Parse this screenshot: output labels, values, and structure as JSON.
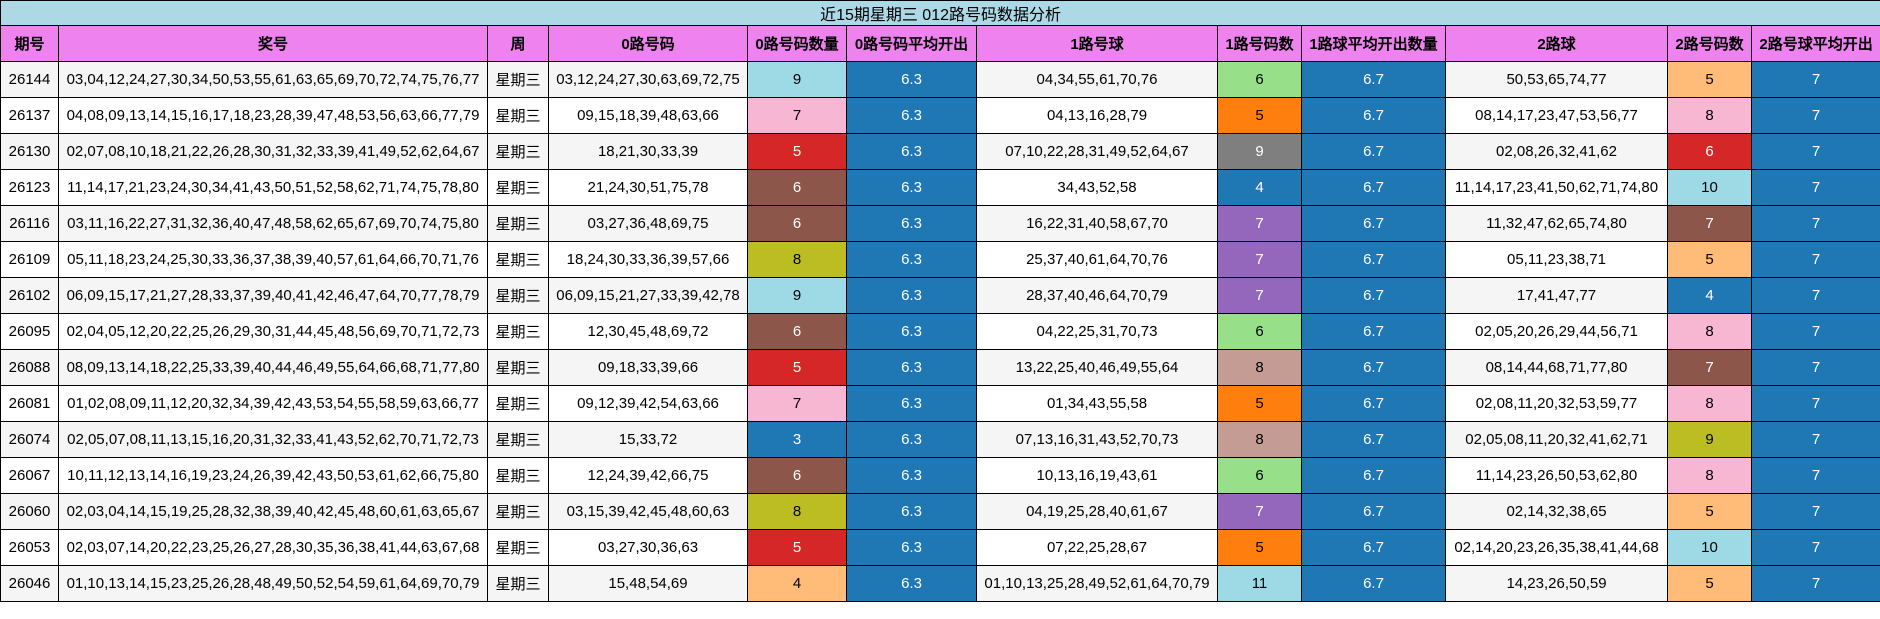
{
  "title": "近15期星期三 012路号码数据分析",
  "headers": [
    "期号",
    "奖号",
    "周",
    "0路号码",
    "0路号码数量",
    "0路号码平均开出",
    "1路号球",
    "1路号码数",
    "1路球平均开出数量",
    "2路球",
    "2路号码数",
    "2路号球平均开出"
  ],
  "rows": [
    [
      26144,
      "03,04,12,24,27,30,34,50,53,55,61,63,65,69,70,72,74,75,76,77",
      "星期三",
      "03,12,24,27,30,63,69,72,75",
      9,
      6.3,
      "04,34,55,61,70,76",
      6,
      6.7,
      "50,53,65,74,77",
      5,
      7
    ],
    [
      26137,
      "04,08,09,13,14,15,16,17,18,23,28,39,47,48,53,56,63,66,77,79",
      "星期三",
      "09,15,18,39,48,63,66",
      7,
      6.3,
      "04,13,16,28,79",
      5,
      6.7,
      "08,14,17,23,47,53,56,77",
      8,
      7
    ],
    [
      26130,
      "02,07,08,10,18,21,22,26,28,30,31,32,33,39,41,49,52,62,64,67",
      "星期三",
      "18,21,30,33,39",
      5,
      6.3,
      "07,10,22,28,31,49,52,64,67",
      9,
      6.7,
      "02,08,26,32,41,62",
      6,
      7
    ],
    [
      26123,
      "11,14,17,21,23,24,30,34,41,43,50,51,52,58,62,71,74,75,78,80",
      "星期三",
      "21,24,30,51,75,78",
      6,
      6.3,
      "34,43,52,58",
      4,
      6.7,
      "11,14,17,23,41,50,62,71,74,80",
      10,
      7
    ],
    [
      26116,
      "03,11,16,22,27,31,32,36,40,47,48,58,62,65,67,69,70,74,75,80",
      "星期三",
      "03,27,36,48,69,75",
      6,
      6.3,
      "16,22,31,40,58,67,70",
      7,
      6.7,
      "11,32,47,62,65,74,80",
      7,
      7
    ],
    [
      26109,
      "05,11,18,23,24,25,30,33,36,37,38,39,40,57,61,64,66,70,71,76",
      "星期三",
      "18,24,30,33,36,39,57,66",
      8,
      6.3,
      "25,37,40,61,64,70,76",
      7,
      6.7,
      "05,11,23,38,71",
      5,
      7
    ],
    [
      26102,
      "06,09,15,17,21,27,28,33,37,39,40,41,42,46,47,64,70,77,78,79",
      "星期三",
      "06,09,15,21,27,33,39,42,78",
      9,
      6.3,
      "28,37,40,46,64,70,79",
      7,
      6.7,
      "17,41,47,77",
      4,
      7
    ],
    [
      26095,
      "02,04,05,12,20,22,25,26,29,30,31,44,45,48,56,69,70,71,72,73",
      "星期三",
      "12,30,45,48,69,72",
      6,
      6.3,
      "04,22,25,31,70,73",
      6,
      6.7,
      "02,05,20,26,29,44,56,71",
      8,
      7
    ],
    [
      26088,
      "08,09,13,14,18,22,25,33,39,40,44,46,49,55,64,66,68,71,77,80",
      "星期三",
      "09,18,33,39,66",
      5,
      6.3,
      "13,22,25,40,46,49,55,64",
      8,
      6.7,
      "08,14,44,68,71,77,80",
      7,
      7
    ],
    [
      26081,
      "01,02,08,09,11,12,20,32,34,39,42,43,53,54,55,58,59,63,66,77",
      "星期三",
      "09,12,39,42,54,63,66",
      7,
      6.3,
      "01,34,43,55,58",
      5,
      6.7,
      "02,08,11,20,32,53,59,77",
      8,
      7
    ],
    [
      26074,
      "02,05,07,08,11,13,15,16,20,31,32,33,41,43,52,62,70,71,72,73",
      "星期三",
      "15,33,72",
      3,
      6.3,
      "07,13,16,31,43,52,70,73",
      8,
      6.7,
      "02,05,08,11,20,32,41,62,71",
      9,
      7
    ],
    [
      26067,
      "10,11,12,13,14,16,19,23,24,26,39,42,43,50,53,61,62,66,75,80",
      "星期三",
      "12,24,39,42,66,75",
      6,
      6.3,
      "10,13,16,19,43,61",
      6,
      6.7,
      "11,14,23,26,50,53,62,80",
      8,
      7
    ],
    [
      26060,
      "02,03,04,14,15,19,25,28,32,38,39,40,42,45,48,60,61,63,65,67",
      "星期三",
      "03,15,39,42,45,48,60,63",
      8,
      6.3,
      "04,19,25,28,40,61,67",
      7,
      6.7,
      "02,14,32,38,65",
      5,
      7
    ],
    [
      26053,
      "02,03,07,14,20,22,23,25,26,27,28,30,35,36,38,41,44,63,67,68",
      "星期三",
      "03,27,30,36,63",
      5,
      6.3,
      "07,22,25,28,67",
      5,
      6.7,
      "02,14,20,23,26,35,38,41,44,68",
      10,
      7
    ],
    [
      26046,
      "01,10,13,14,15,23,25,26,28,48,49,50,52,54,59,61,64,69,70,79",
      "星期三",
      "15,48,54,69",
      4,
      6.3,
      "01,10,13,25,28,49,52,61,64,70,79",
      11,
      6.7,
      "14,23,26,50,59",
      5,
      7
    ]
  ],
  "count_colors": [
    [
      "#9edae5",
      "#98df8a",
      "#ffbb78"
    ],
    [
      "#f7b6d2",
      "#ff7f0e",
      "#f7b6d2"
    ],
    [
      "#d62728",
      "#7f7f7f",
      "#d62728"
    ],
    [
      "#8c564b",
      "#1f77b4",
      "#9edae5"
    ],
    [
      "#8c564b",
      "#9467bd",
      "#8c564b"
    ],
    [
      "#bcbd22",
      "#9467bd",
      "#ffbb78"
    ],
    [
      "#9edae5",
      "#9467bd",
      "#1f77b4"
    ],
    [
      "#8c564b",
      "#98df8a",
      "#f7b6d2"
    ],
    [
      "#d62728",
      "#c49c94",
      "#8c564b"
    ],
    [
      "#f7b6d2",
      "#ff7f0e",
      "#f7b6d2"
    ],
    [
      "#1f77b4",
      "#c49c94",
      "#bcbd22"
    ],
    [
      "#8c564b",
      "#98df8a",
      "#f7b6d2"
    ],
    [
      "#bcbd22",
      "#9467bd",
      "#ffbb78"
    ],
    [
      "#d62728",
      "#ff7f0e",
      "#9edae5"
    ],
    [
      "#ffbb78",
      "#9edae5",
      "#ffbb78"
    ]
  ],
  "average_color": "#1f77b4"
}
